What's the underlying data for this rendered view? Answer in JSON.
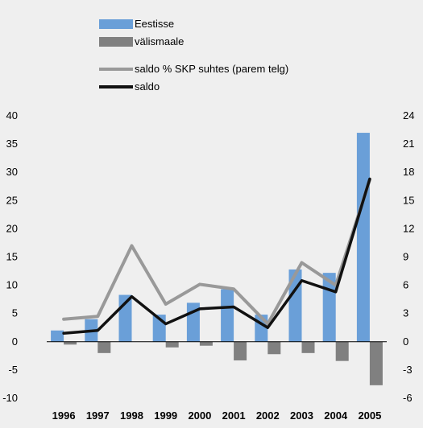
{
  "chart_data": {
    "type": "bar",
    "categories": [
      "1996",
      "1997",
      "1998",
      "1999",
      "2000",
      "2001",
      "2002",
      "2003",
      "2004",
      "2005"
    ],
    "series": [
      {
        "name": "Eestisse",
        "kind": "bar",
        "axis": "left",
        "color": "#6a9fd8",
        "values": [
          2.0,
          4.0,
          8.3,
          4.8,
          6.9,
          9.3,
          4.8,
          12.8,
          12.2,
          37.0
        ]
      },
      {
        "name": "välismaale",
        "kind": "bar",
        "axis": "left",
        "color": "#808080",
        "values": [
          -0.5,
          -2.0,
          0.0,
          -1.0,
          -0.7,
          -3.3,
          -2.2,
          -2.0,
          -3.4,
          -7.7
        ]
      },
      {
        "name": "saldo % SKP suhtes (parem telg)",
        "kind": "line",
        "axis": "right",
        "color": "#999999",
        "values": [
          2.4,
          2.7,
          10.2,
          4.0,
          6.1,
          5.6,
          1.9,
          8.4,
          6.0,
          17.2
        ]
      },
      {
        "name": "saldo",
        "kind": "line",
        "axis": "right",
        "color": "#111111",
        "values": [
          0.9,
          1.2,
          4.8,
          1.9,
          3.5,
          3.7,
          1.5,
          6.5,
          5.3,
          17.3
        ]
      }
    ],
    "y_left": {
      "ylim": [
        -10,
        40
      ],
      "ticks": [
        "-10",
        "-5",
        "0",
        "5",
        "10",
        "15",
        "20",
        "25",
        "30",
        "35",
        "40"
      ]
    },
    "y_right": {
      "ylim": [
        -6,
        24
      ],
      "ticks": [
        "-6",
        "-3",
        "0",
        "3",
        "6",
        "9",
        "12",
        "15",
        "18",
        "21",
        "24"
      ]
    },
    "legend_position": "top",
    "grid": false
  }
}
